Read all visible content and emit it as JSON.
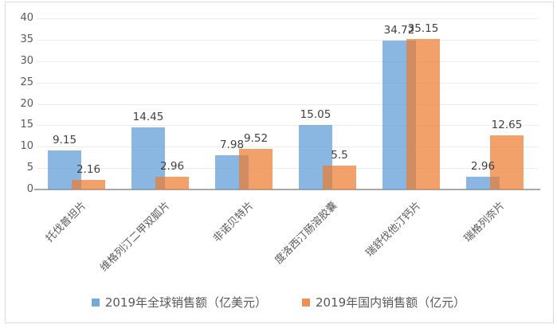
{
  "chart_data": {
    "type": "bar",
    "title": "",
    "xlabel": "",
    "ylabel": "",
    "categories": [
      "托伐普坦片",
      "维格列汀二甲双胍片",
      "非诺贝特片",
      "度洛西汀肠溶胶囊",
      "瑞舒伐他汀钙片",
      "瑞格列奈片"
    ],
    "series": [
      {
        "name": "2019年全球销售额（亿美元）",
        "values": [
          9.15,
          14.45,
          7.98,
          15.05,
          34.72,
          2.96
        ],
        "labels": [
          "9.15",
          "14.45",
          "7.98",
          "15.05",
          "34.72",
          "2.96"
        ],
        "color": "#5B9BD5"
      },
      {
        "name": "2019年国内销售额（亿元）",
        "values": [
          2.16,
          2.96,
          9.52,
          5.5,
          35.15,
          12.65
        ],
        "labels": [
          "2.16",
          "2.96",
          "9.52",
          "5.5",
          "35.15",
          "12.65"
        ],
        "color": "#ED7D31"
      }
    ],
    "y_axis": {
      "min": 0,
      "max": 40,
      "step": 5,
      "ticks": [
        "40",
        "35",
        "30",
        "25",
        "20",
        "15",
        "10",
        "5",
        "0"
      ]
    },
    "grid": true,
    "legend_position": "bottom"
  },
  "colors": {
    "series_blue": "#5B9BD5",
    "series_orange": "#ED7D31",
    "gridline": "#ECECEC",
    "axis_line": "#A9A9A9",
    "axis_text": "#595959",
    "data_label_text": "#404040",
    "figure_border": "#D9D9D9"
  }
}
